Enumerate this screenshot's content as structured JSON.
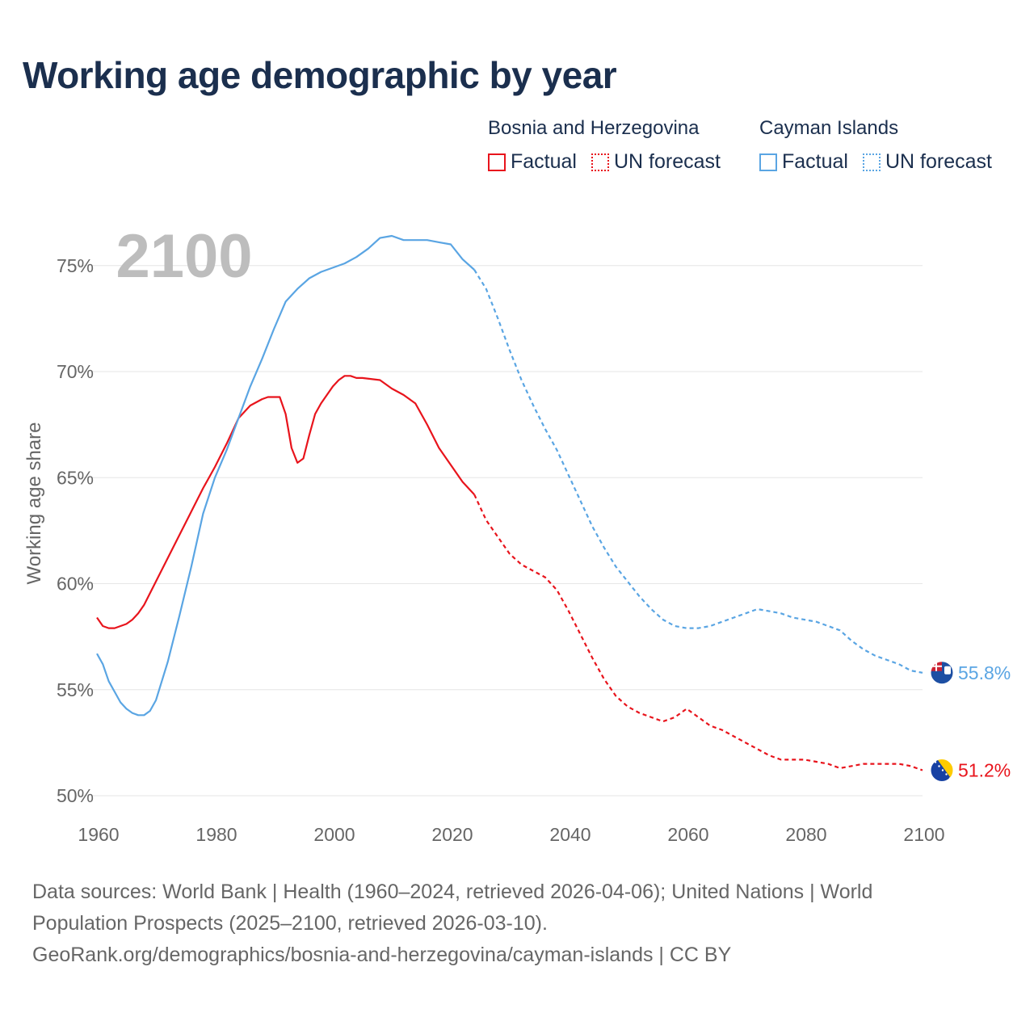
{
  "title": "Working age demographic by year",
  "legend": {
    "groups": [
      {
        "name": "Bosnia and Herzegovina",
        "color": "#e8141c",
        "factual_label": "Factual",
        "forecast_label": "UN forecast"
      },
      {
        "name": "Cayman Islands",
        "color": "#5aa5e3",
        "factual_label": "Factual",
        "forecast_label": "UN forecast"
      }
    ]
  },
  "year_watermark": "2100",
  "footer": {
    "line1": "Data sources: World Bank | Health (1960–2024, retrieved 2026-04-06); United Nations | World",
    "line2": "Population Prospects (2025–2100, retrieved 2026-03-10).",
    "line3": "GeoRank.org/demographics/bosnia-and-herzegovina/cayman-islands | CC BY"
  },
  "chart_data": {
    "type": "line",
    "title": "Working age demographic by year",
    "xlabel": "",
    "ylabel": "Working age share",
    "xlim": [
      1960,
      2100
    ],
    "ylim": [
      50,
      76.5
    ],
    "x_ticks": [
      1960,
      1980,
      2000,
      2020,
      2040,
      2060,
      2080,
      2100
    ],
    "x_tick_labels": [
      "1960",
      "1980",
      "2000",
      "2020",
      "2040",
      "2060",
      "2080",
      "2100"
    ],
    "y_ticks": [
      50,
      55,
      60,
      65,
      70,
      75
    ],
    "y_tick_labels": [
      "50%",
      "55%",
      "60%",
      "65%",
      "70%",
      "75%"
    ],
    "grid": true,
    "factual_end_year": 2024,
    "series": [
      {
        "name": "Bosnia and Herzegovina",
        "color": "#e8141c",
        "end_label": "51.2%",
        "flag": "bosnia-flag",
        "x": [
          1960,
          1961,
          1962,
          1963,
          1964,
          1965,
          1966,
          1967,
          1968,
          1970,
          1972,
          1974,
          1976,
          1978,
          1980,
          1982,
          1984,
          1986,
          1988,
          1989,
          1990,
          1991,
          1992,
          1993,
          1994,
          1995,
          1996,
          1997,
          1998,
          2000,
          2001,
          2002,
          2003,
          2004,
          2005,
          2008,
          2010,
          2012,
          2014,
          2016,
          2018,
          2020,
          2022,
          2024,
          2026,
          2028,
          2030,
          2032,
          2034,
          2036,
          2038,
          2040,
          2042,
          2044,
          2046,
          2048,
          2050,
          2052,
          2054,
          2056,
          2058,
          2060,
          2062,
          2064,
          2066,
          2068,
          2070,
          2072,
          2074,
          2076,
          2078,
          2080,
          2082,
          2084,
          2086,
          2088,
          2090,
          2092,
          2094,
          2096,
          2098,
          2100
        ],
        "y": [
          58.4,
          58.0,
          57.9,
          57.9,
          58.0,
          58.1,
          58.3,
          58.6,
          59.0,
          60.1,
          61.2,
          62.3,
          63.4,
          64.5,
          65.5,
          66.6,
          67.8,
          68.4,
          68.7,
          68.8,
          68.8,
          68.8,
          68.0,
          66.4,
          65.7,
          65.9,
          67.0,
          68.0,
          68.5,
          69.3,
          69.6,
          69.8,
          69.8,
          69.7,
          69.7,
          69.6,
          69.2,
          68.9,
          68.5,
          67.5,
          66.4,
          65.6,
          64.8,
          64.2,
          63.0,
          62.2,
          61.4,
          60.9,
          60.6,
          60.3,
          59.7,
          58.7,
          57.6,
          56.5,
          55.5,
          54.7,
          54.2,
          53.9,
          53.7,
          53.5,
          53.7,
          54.1,
          53.7,
          53.3,
          53.1,
          52.8,
          52.5,
          52.2,
          51.9,
          51.7,
          51.7,
          51.7,
          51.6,
          51.5,
          51.3,
          51.4,
          51.5,
          51.5,
          51.5,
          51.5,
          51.4,
          51.2
        ]
      },
      {
        "name": "Cayman Islands",
        "color": "#5aa5e3",
        "end_label": "55.8%",
        "flag": "cayman-flag",
        "x": [
          1960,
          1961,
          1962,
          1963,
          1964,
          1965,
          1966,
          1967,
          1968,
          1969,
          1970,
          1972,
          1974,
          1976,
          1978,
          1980,
          1982,
          1984,
          1986,
          1988,
          1990,
          1992,
          1994,
          1996,
          1998,
          2000,
          2002,
          2004,
          2006,
          2008,
          2010,
          2012,
          2014,
          2016,
          2018,
          2020,
          2022,
          2024,
          2026,
          2028,
          2030,
          2032,
          2034,
          2036,
          2038,
          2040,
          2042,
          2044,
          2046,
          2048,
          2050,
          2052,
          2054,
          2056,
          2058,
          2060,
          2062,
          2064,
          2066,
          2068,
          2070,
          2072,
          2074,
          2076,
          2078,
          2080,
          2082,
          2084,
          2086,
          2088,
          2090,
          2092,
          2094,
          2096,
          2098,
          2100
        ],
        "y": [
          56.7,
          56.2,
          55.4,
          54.9,
          54.4,
          54.1,
          53.9,
          53.8,
          53.8,
          54.0,
          54.5,
          56.3,
          58.5,
          60.8,
          63.3,
          65.0,
          66.3,
          67.8,
          69.3,
          70.6,
          72.0,
          73.3,
          73.9,
          74.4,
          74.7,
          74.9,
          75.1,
          75.4,
          75.8,
          76.3,
          76.4,
          76.2,
          76.2,
          76.2,
          76.1,
          76.0,
          75.3,
          74.8,
          73.9,
          72.5,
          71.0,
          69.6,
          68.4,
          67.3,
          66.3,
          65.1,
          63.9,
          62.7,
          61.7,
          60.8,
          60.1,
          59.4,
          58.8,
          58.3,
          58.0,
          57.9,
          57.9,
          58.0,
          58.2,
          58.4,
          58.6,
          58.8,
          58.7,
          58.6,
          58.4,
          58.3,
          58.2,
          58.0,
          57.8,
          57.3,
          56.9,
          56.6,
          56.4,
          56.2,
          55.9,
          55.8
        ]
      }
    ]
  }
}
